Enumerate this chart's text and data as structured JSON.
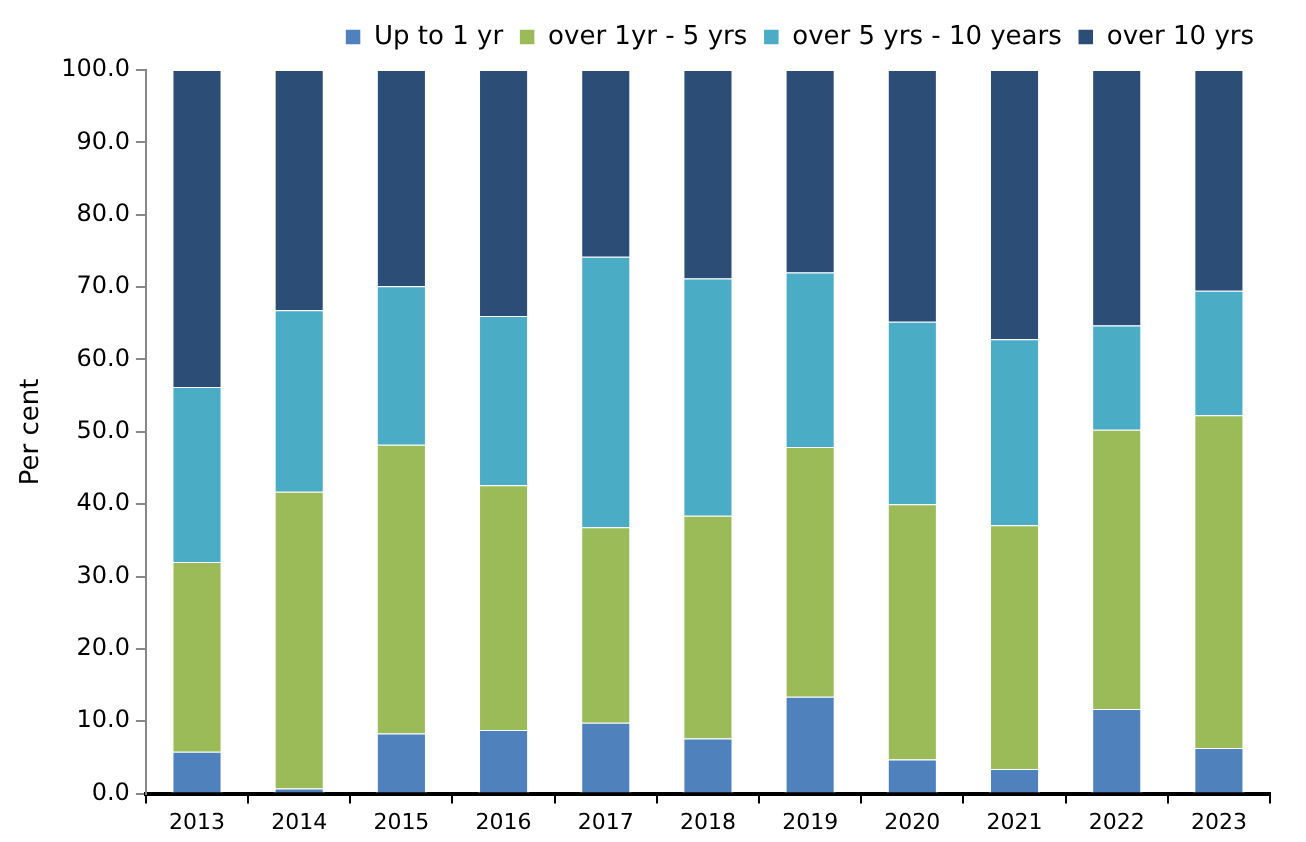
{
  "chart_data": {
    "type": "bar",
    "stacked": true,
    "ylabel": "Per cent",
    "categories": [
      "2013",
      "2014",
      "2015",
      "2016",
      "2017",
      "2018",
      "2019",
      "2020",
      "2021",
      "2022",
      "2023"
    ],
    "series": [
      {
        "name": "Up to 1 yr",
        "color": "#4f81bd",
        "values": [
          5.8,
          0.7,
          8.3,
          8.8,
          9.8,
          7.6,
          13.4,
          4.7,
          3.4,
          11.7,
          6.3
        ]
      },
      {
        "name": "over 1yr - 5 yrs",
        "color": "#9bbb59",
        "values": [
          26.2,
          41.0,
          39.9,
          33.8,
          27.0,
          30.8,
          34.5,
          35.3,
          33.7,
          38.6,
          46.0
        ]
      },
      {
        "name": "over 5 yrs - 10 years",
        "color": "#4bacc6",
        "values": [
          24.2,
          25.1,
          21.9,
          23.4,
          37.4,
          32.8,
          24.1,
          25.2,
          25.7,
          14.4,
          17.2
        ]
      },
      {
        "name": "over 10 yrs",
        "color": "#2c4d75",
        "values": [
          43.8,
          33.2,
          29.9,
          34.0,
          25.8,
          28.8,
          28.0,
          34.8,
          37.2,
          35.3,
          30.5
        ]
      }
    ],
    "ylim": [
      0,
      100
    ],
    "yticks": [
      {
        "value": 0,
        "label": "0.0"
      },
      {
        "value": 10,
        "label": "10.0"
      },
      {
        "value": 20,
        "label": "20.0"
      },
      {
        "value": 30,
        "label": "30.0"
      },
      {
        "value": 40,
        "label": "40.0"
      },
      {
        "value": 50,
        "label": "50.0"
      },
      {
        "value": 60,
        "label": "60.0"
      },
      {
        "value": 70,
        "label": "70.0"
      },
      {
        "value": 80,
        "label": "80.0"
      },
      {
        "value": 90,
        "label": "90.0"
      },
      {
        "value": 100,
        "label": "100.0"
      }
    ],
    "grid": false,
    "legend": "top"
  }
}
